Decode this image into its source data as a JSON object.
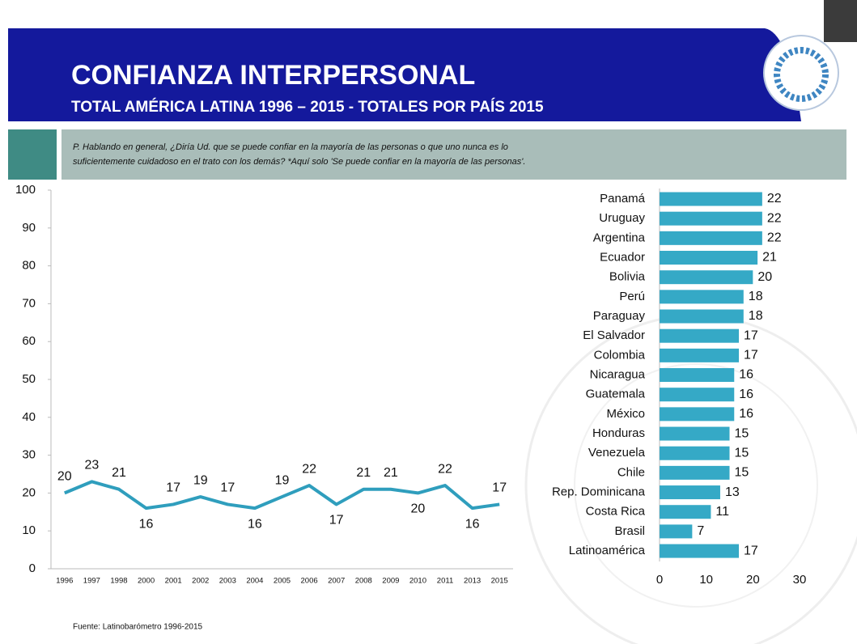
{
  "header": {
    "title": "CONFIANZA INTERPERSONAL",
    "subtitle": "TOTAL AMÉRICA LATINA 1996 – 2015 - TOTALES POR PAÍS 2015"
  },
  "question": [
    "P. Hablando en general, ¿Diría Ud. que se puede confiar en la mayoría de las personas o que uno nunca es lo",
    "suficientemente cuidadoso en el trato con los demás?  *Aquí  solo 'Se puede confiar en la mayoría de las personas'."
  ],
  "source": "Fuente: Latinobarómetro 1996-2015",
  "chart_data": [
    {
      "type": "line",
      "color": "#2f9ebd",
      "categories": [
        "1996",
        "1997",
        "1998",
        "2000",
        "2001",
        "2002",
        "2003",
        "2004",
        "2005",
        "2006",
        "2007",
        "2008",
        "2009",
        "2010",
        "2011",
        "2013",
        "2015"
      ],
      "values": [
        20,
        23,
        21,
        16,
        17,
        19,
        17,
        16,
        19,
        22,
        17,
        21,
        21,
        20,
        22,
        16,
        17
      ],
      "ylim": [
        0,
        100
      ],
      "yticks": [
        0,
        10,
        20,
        30,
        40,
        50,
        60,
        70,
        80,
        90,
        100
      ]
    },
    {
      "type": "hbar",
      "color": "#35a9c6",
      "categories": [
        "Panamá",
        "Uruguay",
        "Argentina",
        "Ecuador",
        "Bolivia",
        "Perú",
        "Paraguay",
        "El Salvador",
        "Colombia",
        "Nicaragua",
        "Guatemala",
        "México",
        "Honduras",
        "Venezuela",
        "Chile",
        "Rep. Dominicana",
        "Costa Rica",
        "Brasil",
        "Latinoamérica"
      ],
      "values": [
        22,
        22,
        22,
        21,
        20,
        18,
        18,
        17,
        17,
        16,
        16,
        16,
        15,
        15,
        15,
        13,
        11,
        7,
        17
      ],
      "xlim": [
        0,
        30
      ],
      "xticks": [
        0,
        10,
        20,
        30
      ]
    }
  ]
}
